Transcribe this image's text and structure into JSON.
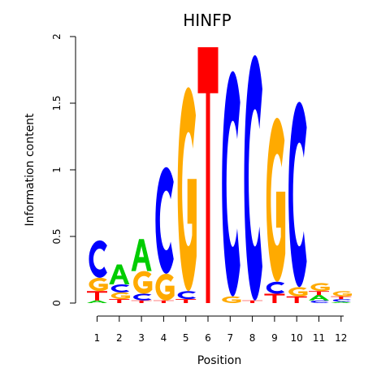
{
  "chart_data": {
    "type": "sequence-logo",
    "title": "HINFP",
    "xlabel": "Position",
    "ylabel": "Information content",
    "ylim": [
      0,
      2
    ],
    "yticks": [
      0,
      0.5,
      1,
      1.5,
      2
    ],
    "yticklabels": [
      "0",
      "0.5",
      "1",
      "1.5",
      "2"
    ],
    "positions": [
      "1",
      "2",
      "3",
      "4",
      "5",
      "6",
      "7",
      "8",
      "9",
      "10",
      "11",
      "12"
    ],
    "colors": {
      "A": "#00cc00",
      "C": "#0000ff",
      "G": "#ffaa00",
      "T": "#ff0000"
    },
    "columns": [
      [
        {
          "base": "A",
          "height": 0.02
        },
        {
          "base": "T",
          "height": 0.07
        },
        {
          "base": "G",
          "height": 0.1
        },
        {
          "base": "C",
          "height": 0.28
        }
      ],
      [
        {
          "base": "T",
          "height": 0.03
        },
        {
          "base": "G",
          "height": 0.05
        },
        {
          "base": "C",
          "height": 0.06
        },
        {
          "base": "A",
          "height": 0.15
        }
      ],
      [
        {
          "base": "T",
          "height": 0.02
        },
        {
          "base": "C",
          "height": 0.05
        },
        {
          "base": "G",
          "height": 0.17
        },
        {
          "base": "A",
          "height": 0.24
        }
      ],
      [
        {
          "base": "T",
          "height": 0.02
        },
        {
          "base": "G",
          "height": 0.2
        },
        {
          "base": "C",
          "height": 0.8
        }
      ],
      [
        {
          "base": "T",
          "height": 0.03
        },
        {
          "base": "C",
          "height": 0.06
        },
        {
          "base": "G",
          "height": 1.53
        }
      ],
      [
        {
          "base": "T",
          "height": 1.92
        }
      ],
      [
        {
          "base": "G",
          "height": 0.05
        },
        {
          "base": "C",
          "height": 1.69
        }
      ],
      [
        {
          "base": "T",
          "height": 0.02
        },
        {
          "base": "C",
          "height": 1.84
        }
      ],
      [
        {
          "base": "T",
          "height": 0.07
        },
        {
          "base": "C",
          "height": 0.09
        },
        {
          "base": "G",
          "height": 1.23
        }
      ],
      [
        {
          "base": "T",
          "height": 0.05
        },
        {
          "base": "G",
          "height": 0.07
        },
        {
          "base": "C",
          "height": 1.39
        }
      ],
      [
        {
          "base": "C",
          "height": 0.02
        },
        {
          "base": "A",
          "height": 0.04
        },
        {
          "base": "T",
          "height": 0.03
        },
        {
          "base": "G",
          "height": 0.06
        }
      ],
      [
        {
          "base": "A",
          "height": 0.01
        },
        {
          "base": "C",
          "height": 0.02
        },
        {
          "base": "T",
          "height": 0.02
        },
        {
          "base": "G",
          "height": 0.04
        }
      ]
    ]
  }
}
